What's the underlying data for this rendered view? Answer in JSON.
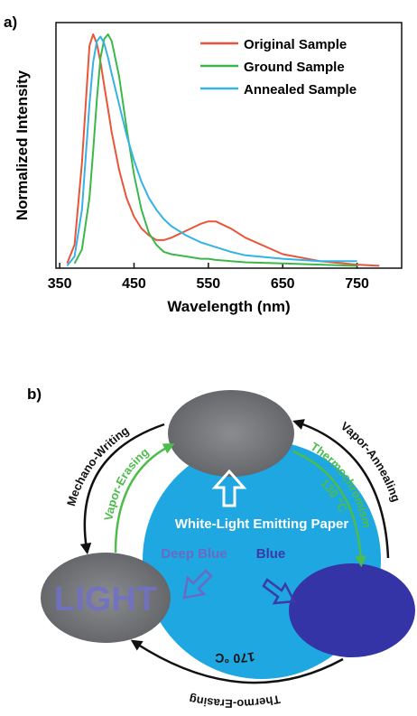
{
  "chart_data": {
    "type": "line",
    "panel_label": "a)",
    "x_label": "Wavelength (nm)",
    "y_label": "Normalized Intensity",
    "x": [
      360,
      370,
      380,
      390,
      395,
      400,
      405,
      410,
      415,
      420,
      430,
      440,
      450,
      460,
      470,
      480,
      490,
      500,
      520,
      540,
      550,
      560,
      580,
      600,
      650,
      700,
      750,
      780
    ],
    "series": [
      {
        "name": "Original Sample",
        "color": "#e8553a",
        "values": [
          0.02,
          0.1,
          0.45,
          0.95,
          1.0,
          0.96,
          0.88,
          0.78,
          0.68,
          0.58,
          0.42,
          0.3,
          0.22,
          0.17,
          0.14,
          0.12,
          0.12,
          0.13,
          0.16,
          0.19,
          0.2,
          0.2,
          0.17,
          0.13,
          0.06,
          0.03,
          0.015,
          0.01
        ]
      },
      {
        "name": "Ground Sample",
        "color": "#3cb84a",
        "values": [
          null,
          0.02,
          0.08,
          0.3,
          0.5,
          0.72,
          0.9,
          0.98,
          1.0,
          0.97,
          0.82,
          0.6,
          0.4,
          0.25,
          0.15,
          0.1,
          0.07,
          0.06,
          0.05,
          0.04,
          0.04,
          0.035,
          0.03,
          0.025,
          0.02,
          0.015,
          0.01,
          null
        ]
      },
      {
        "name": "Annealed Sample",
        "color": "#35b3e3",
        "values": [
          0.01,
          0.05,
          0.25,
          0.7,
          0.88,
          0.97,
          0.99,
          0.96,
          0.9,
          0.83,
          0.7,
          0.57,
          0.46,
          0.37,
          0.3,
          0.25,
          0.21,
          0.18,
          0.14,
          0.11,
          0.1,
          0.09,
          0.07,
          0.055,
          0.04,
          0.03,
          0.03,
          null
        ]
      }
    ],
    "xlim": [
      345,
      810
    ],
    "xticks": [
      350,
      450,
      550,
      650,
      750
    ],
    "ylim": [
      0,
      1.05
    ],
    "legend": "upper right"
  },
  "diagram": {
    "panel_label": "b)",
    "center": "White-Light Emitting Paper",
    "left_state": "Deep Blue",
    "right_state": "Blue",
    "written_text": "LIGHT",
    "mechano": "Mechano-Writing",
    "vapor_erasing": "Vapor-Erasing",
    "thermochromism": "Thermochromism",
    "thermo_temp": "130 °C",
    "vapor_annealing": "Vapor-Annealing",
    "thermo_erasing": "Thermo-Erasing",
    "erase_temp": "170 °C"
  }
}
